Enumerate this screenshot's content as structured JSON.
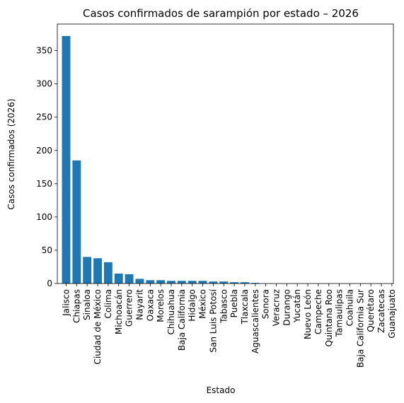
{
  "chart_data": {
    "type": "bar",
    "title": "Casos confirmados de sarampión por estado – 2026",
    "xlabel": "Estado",
    "ylabel": "Casos confirmados (2026)",
    "categories": [
      "Jalisco",
      "Chiapas",
      "Sinaloa",
      "Ciudad de México",
      "Colima",
      "Michoacán",
      "Guerrero",
      "Nayarit",
      "Oaxaca",
      "Morelos",
      "Chihuahua",
      "Baja California",
      "Hidalgo",
      "México",
      "San Luis Potosí",
      "Tabasco",
      "Puebla",
      "Tlaxcala",
      "Aguascalientes",
      "Sonora",
      "Veracruz",
      "Durango",
      "Yucatán",
      "Nuevo León",
      "Campeche",
      "Quintana Roo",
      "Tamaulipas",
      "Coahuila",
      "Baja California Sur",
      "Querétaro",
      "Zacatecas",
      "Guanajuato"
    ],
    "values": [
      372,
      185,
      40,
      38,
      32,
      15,
      14,
      7,
      5,
      5,
      4,
      4,
      4,
      4,
      3,
      3,
      2,
      2,
      1,
      0,
      0,
      0,
      0,
      0,
      0,
      0,
      0,
      0,
      0,
      0,
      0,
      0
    ],
    "ylim": [
      0,
      390
    ],
    "yticks": [
      0,
      50,
      100,
      150,
      200,
      250,
      300,
      350
    ],
    "color": "#1f77b4",
    "grid": false,
    "legend": "none"
  }
}
